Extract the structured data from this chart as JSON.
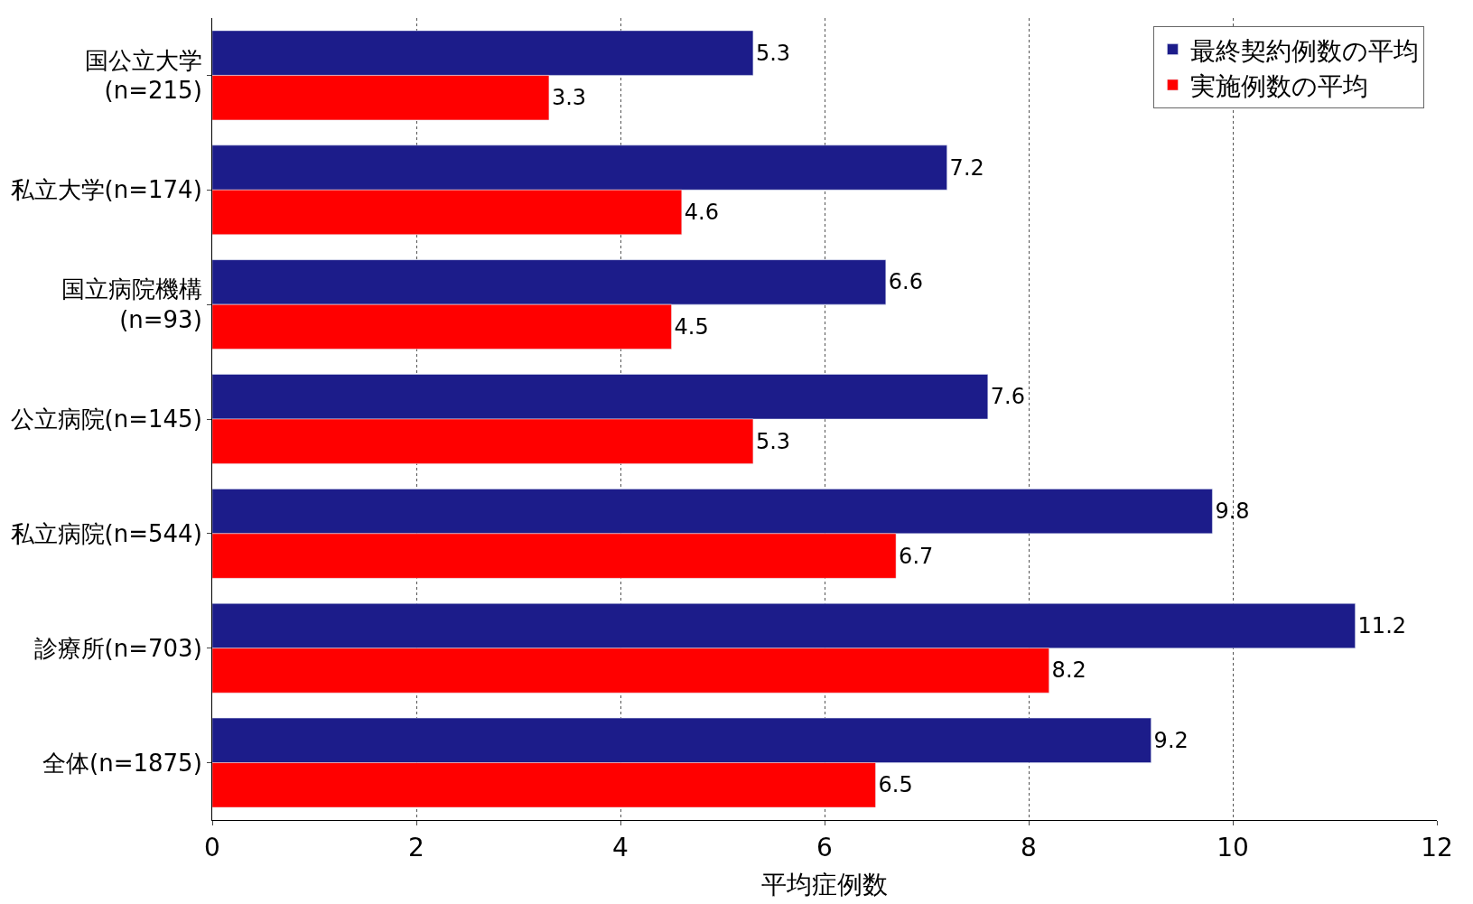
{
  "chart_data": {
    "type": "bar",
    "orientation": "horizontal",
    "xlabel": "平均症例数",
    "categories": [
      "国公立大学\n(n=215)",
      "私立大学(n=174)",
      "国立病院機構\n(n=93)",
      "公立病院(n=145)",
      "私立病院(n=544)",
      "診療所(n=703)",
      "全体(n=1875)"
    ],
    "series": [
      {
        "name": "最終契約例数の平均",
        "color": "#1c1c8a",
        "values": [
          5.3,
          7.2,
          6.6,
          7.6,
          9.8,
          11.2,
          9.2
        ]
      },
      {
        "name": "実施例数の平均",
        "color": "#ff0000",
        "values": [
          3.3,
          4.6,
          4.5,
          5.3,
          6.7,
          8.2,
          6.5
        ]
      }
    ],
    "xlim": [
      0,
      12
    ],
    "xticks": [
      0,
      2,
      4,
      6,
      8,
      10,
      12
    ],
    "grid": "x",
    "legend": "top right",
    "data_labels": true
  }
}
